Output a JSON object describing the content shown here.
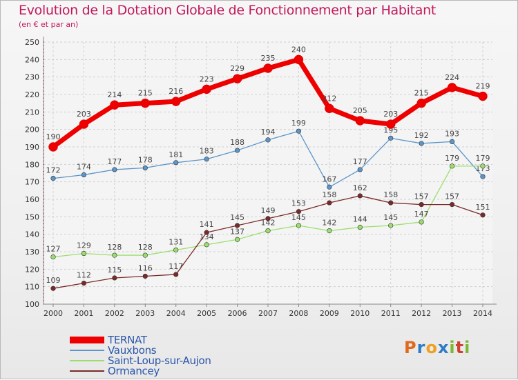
{
  "header": {
    "title": "Evolution de la Dotation Globale de Fonctionnement par Habitant",
    "subtitle": "(en € et par an)"
  },
  "logo": {
    "letters": [
      "P",
      "r",
      "o",
      "x",
      "i",
      "t",
      "i"
    ],
    "colors": [
      "#e06a1a",
      "#2e7bc4",
      "#f0a020",
      "#2e7bc4",
      "#7cb832",
      "#d04030",
      "#7cb832"
    ]
  },
  "chart_data": {
    "type": "line",
    "title": "Evolution de la Dotation Globale de Fonctionnement par Habitant",
    "subtitle": "(en € et par an)",
    "x": [
      2000,
      2001,
      2002,
      2003,
      2004,
      2005,
      2006,
      2007,
      2008,
      2009,
      2010,
      2011,
      2012,
      2013,
      2014
    ],
    "ylim": [
      100,
      250
    ],
    "yticks": [
      100,
      110,
      120,
      130,
      140,
      150,
      160,
      170,
      180,
      190,
      200,
      210,
      220,
      230,
      240,
      250
    ],
    "grid": true,
    "legend_position": "bottom-left",
    "series": [
      {
        "name": "TERNAT",
        "color": "#ee0000",
        "values": [
          190,
          203,
          214,
          215,
          216,
          223,
          229,
          235,
          240,
          212,
          205,
          203,
          215,
          224,
          219
        ],
        "emphasis": true
      },
      {
        "name": "Vauxbons",
        "color": "#5b95c9",
        "values": [
          172,
          174,
          177,
          178,
          181,
          183,
          188,
          194,
          199,
          167,
          177,
          195,
          192,
          193,
          173
        ]
      },
      {
        "name": "Saint-Loup-sur-Aujon",
        "color": "#9bde6e",
        "values": [
          127,
          129,
          128,
          128,
          131,
          134,
          137,
          142,
          145,
          142,
          144,
          145,
          147,
          179,
          179
        ]
      },
      {
        "name": "Ormancey",
        "color": "#7a2a2a",
        "values": [
          109,
          112,
          115,
          116,
          117,
          141,
          145,
          149,
          153,
          158,
          162,
          158,
          157,
          157,
          151
        ]
      }
    ]
  }
}
